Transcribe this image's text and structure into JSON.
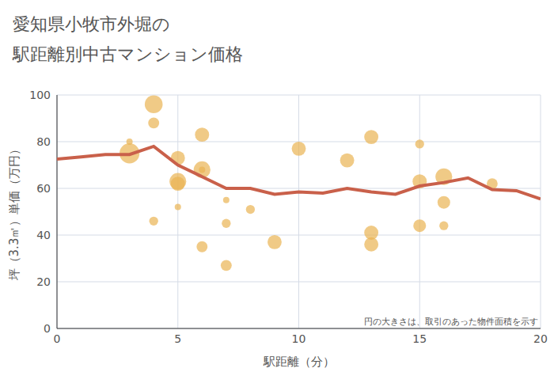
{
  "chart_data": {
    "type": "scatter",
    "title": "愛知県小牧市外堀の\n駅距離別中古マンション価格",
    "x_label": "駅距離（分）",
    "y_label": "坪（3.3㎡）単価（万円）",
    "annotation": "円の大きさは、取引のあった物件面積を示す",
    "xlim": [
      0,
      20
    ],
    "xticks": [
      0,
      5,
      10,
      15,
      20
    ],
    "ylim": [
      0,
      100
    ],
    "yticks": [
      0,
      20,
      40,
      60,
      80,
      100
    ],
    "grid": true,
    "series": [
      {
        "type": "scatter",
        "color": "#eab452",
        "x": [
          3,
          3,
          4,
          4,
          4,
          5,
          5,
          5,
          5,
          6,
          6,
          6,
          6,
          7,
          7,
          7,
          8,
          9,
          10,
          12,
          13,
          13,
          13,
          15,
          15,
          15,
          16,
          16,
          16,
          18
        ],
        "values": [
          80,
          75,
          96,
          88,
          46,
          73,
          63,
          62,
          52,
          83,
          68,
          68,
          35,
          55,
          45,
          27,
          51,
          37,
          77,
          72,
          82,
          41,
          36,
          79,
          63,
          44,
          65,
          54,
          44,
          62
        ],
        "size": [
          1,
          10,
          8,
          3,
          2,
          5,
          7,
          5,
          1,
          5,
          7,
          1,
          3,
          1,
          2,
          3,
          2,
          5,
          5,
          5,
          5,
          5,
          5,
          2,
          5,
          4,
          7,
          4,
          2,
          3
        ]
      },
      {
        "type": "line",
        "color": "#c9604a",
        "x": [
          0,
          1,
          2,
          3,
          4,
          5,
          6,
          7,
          8,
          9,
          10,
          11,
          12,
          13,
          14,
          15,
          16,
          17,
          18,
          19,
          20
        ],
        "values": [
          72.5,
          73.5,
          74.5,
          74.5,
          78,
          70,
          65,
          60,
          60,
          57.5,
          58.5,
          58,
          60,
          58.5,
          57.5,
          61,
          62.5,
          64.5,
          59.5,
          59,
          55.5
        ]
      }
    ]
  }
}
